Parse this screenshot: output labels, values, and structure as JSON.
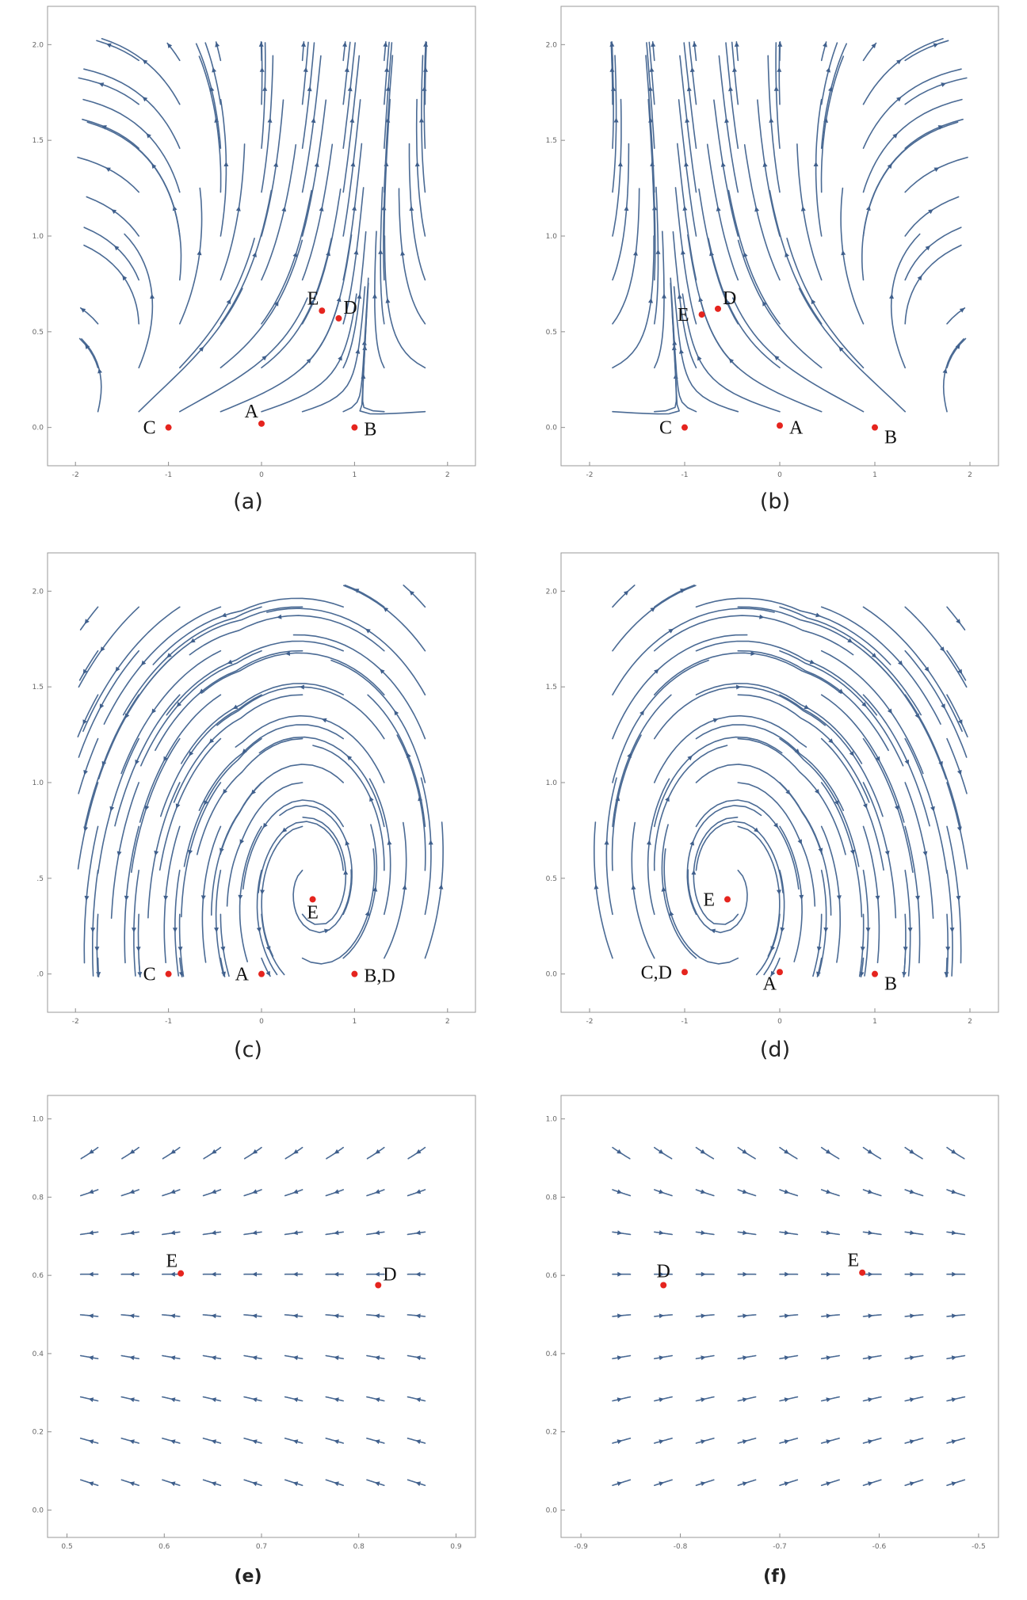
{
  "chart_data": [
    {
      "panel": "(a)",
      "type": "streamplot",
      "xlim": [
        -2.3,
        2.3
      ],
      "ylim": [
        -0.2,
        2.2
      ],
      "xticks": [
        -2,
        -1,
        0,
        1,
        2
      ],
      "yticks": [
        0.0,
        0.5,
        1.0,
        1.5,
        2.0
      ],
      "xtick_labels": [
        "-2",
        "-1",
        "0",
        "1",
        "2"
      ],
      "ytick_labels": [
        "0.0",
        "0.5",
        "1.0",
        "1.5",
        "2.0"
      ],
      "stream_color": "#4a6a94",
      "point_color": "#e5241e",
      "points": [
        {
          "label": "C",
          "x": -1.0,
          "y": 0.0,
          "label_pos": "left"
        },
        {
          "label": "A",
          "x": 0.0,
          "y": 0.02,
          "label_pos": "above-left"
        },
        {
          "label": "B",
          "x": 1.0,
          "y": 0.0,
          "label_pos": "right"
        },
        {
          "label": "E",
          "x": 0.65,
          "y": 0.61,
          "label_pos": "above-left"
        },
        {
          "label": "D",
          "x": 0.83,
          "y": 0.57,
          "label_pos": "above-right"
        }
      ]
    },
    {
      "panel": "(b)",
      "type": "streamplot",
      "xlim": [
        -2.3,
        2.3
      ],
      "ylim": [
        -0.2,
        2.2
      ],
      "xticks": [
        -2,
        -1,
        0,
        1,
        2
      ],
      "yticks": [
        0.0,
        0.5,
        1.0,
        1.5,
        2.0
      ],
      "xtick_labels": [
        "-2",
        "-1",
        "0",
        "1",
        "2"
      ],
      "ytick_labels": [
        "0.0",
        "0.5",
        "1.0",
        "1.5",
        "2.0"
      ],
      "stream_color": "#4a6a94",
      "point_color": "#e5241e",
      "points": [
        {
          "label": "C",
          "x": -1.0,
          "y": 0.0,
          "label_pos": "left"
        },
        {
          "label": "A",
          "x": 0.0,
          "y": 0.01,
          "label_pos": "right"
        },
        {
          "label": "B",
          "x": 1.0,
          "y": 0.0,
          "label_pos": "below-right"
        },
        {
          "label": "E",
          "x": -0.82,
          "y": 0.59,
          "label_pos": "left"
        },
        {
          "label": "D",
          "x": -0.65,
          "y": 0.62,
          "label_pos": "above-right"
        }
      ]
    },
    {
      "panel": "(c)",
      "type": "streamplot",
      "xlim": [
        -2.3,
        2.3
      ],
      "ylim": [
        -0.2,
        2.2
      ],
      "xticks": [
        -2,
        -1,
        0,
        1,
        2
      ],
      "yticks": [
        0.0,
        0.5,
        1.0,
        1.5,
        2.0
      ],
      "xtick_labels": [
        "-2",
        "-1",
        "0",
        "1",
        "2"
      ],
      "ytick_labels": [
        ".0",
        ".5",
        "1.0",
        "1.5",
        "2.0"
      ],
      "stream_color": "#4a6a94",
      "point_color": "#e5241e",
      "points": [
        {
          "label": "C",
          "x": -1.0,
          "y": 0.0,
          "label_pos": "left"
        },
        {
          "label": "A",
          "x": 0.0,
          "y": 0.0,
          "label_pos": "left"
        },
        {
          "label": "B,D",
          "x": 1.0,
          "y": 0.0,
          "label_pos": "right"
        },
        {
          "label": "E",
          "x": 0.55,
          "y": 0.39,
          "label_pos": "below"
        }
      ]
    },
    {
      "panel": "(d)",
      "type": "streamplot",
      "xlim": [
        -2.3,
        2.3
      ],
      "ylim": [
        -0.2,
        2.2
      ],
      "xticks": [
        -2,
        -1,
        0,
        1,
        2
      ],
      "yticks": [
        0.0,
        0.5,
        1.0,
        1.5,
        2.0
      ],
      "xtick_labels": [
        "-2",
        "-1",
        "0",
        "1",
        "2"
      ],
      "ytick_labels": [
        "0.0",
        "0.5",
        "1.0",
        "1.5",
        "2.0"
      ],
      "stream_color": "#4a6a94",
      "point_color": "#e5241e",
      "points": [
        {
          "label": "C,D",
          "x": -1.0,
          "y": 0.01,
          "label_pos": "left"
        },
        {
          "label": "A",
          "x": 0.0,
          "y": 0.01,
          "label_pos": "below-left"
        },
        {
          "label": "B",
          "x": 1.0,
          "y": 0.0,
          "label_pos": "below-right"
        },
        {
          "label": "E",
          "x": -0.55,
          "y": 0.39,
          "label_pos": "left"
        }
      ]
    },
    {
      "panel": "(e)",
      "type": "streamplot",
      "xlim": [
        0.48,
        0.92
      ],
      "ylim": [
        -0.07,
        1.06
      ],
      "xticks": [
        0.5,
        0.6,
        0.7,
        0.8,
        0.9
      ],
      "yticks": [
        0.0,
        0.2,
        0.4,
        0.6,
        0.8,
        1.0
      ],
      "xtick_labels": [
        "0.5",
        "0.6",
        "0.7",
        "0.8",
        "0.9"
      ],
      "ytick_labels": [
        "0.0",
        "0.2",
        "0.4",
        "0.6",
        "0.8",
        "1.0"
      ],
      "stream_color": "#4a6a94",
      "point_color": "#e5241e",
      "points": [
        {
          "label": "E",
          "x": 0.617,
          "y": 0.605,
          "label_pos": "above-left"
        },
        {
          "label": "D",
          "x": 0.82,
          "y": 0.575,
          "label_pos": "above-right"
        }
      ]
    },
    {
      "panel": "(f)",
      "type": "streamplot",
      "xlim": [
        -0.92,
        -0.48
      ],
      "ylim": [
        -0.07,
        1.06
      ],
      "xticks": [
        -0.9,
        -0.8,
        -0.7,
        -0.6,
        -0.5
      ],
      "yticks": [
        0.0,
        0.2,
        0.4,
        0.6,
        0.8,
        1.0
      ],
      "xtick_labels": [
        "-0.9",
        "-0.8",
        "-0.7",
        "-0.6",
        "-0.5"
      ],
      "ytick_labels": [
        "0.0",
        "0.2",
        "0.4",
        "0.6",
        "0.8",
        "1.0"
      ],
      "stream_color": "#4a6a94",
      "point_color": "#e5241e",
      "points": [
        {
          "label": "D",
          "x": -0.817,
          "y": 0.575,
          "label_pos": "above"
        },
        {
          "label": "E",
          "x": -0.617,
          "y": 0.607,
          "label_pos": "above-left"
        }
      ]
    }
  ],
  "captions": [
    "(a)",
    "(b)",
    "(c)",
    "(d)",
    "(e)",
    "(f)"
  ]
}
